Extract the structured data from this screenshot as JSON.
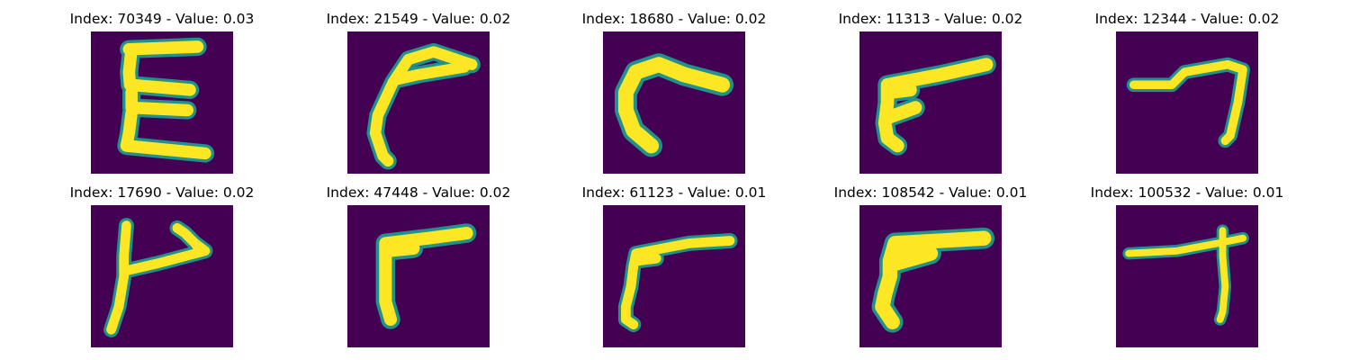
{
  "panels": [
    {
      "title": "Index: 70349 - Value: 0.03",
      "glyph": "epsilon-shape"
    },
    {
      "title": "Index: 21549 - Value: 0.02",
      "glyph": "hook-shape"
    },
    {
      "title": "Index: 18680 - Value: 0.02",
      "glyph": "curve-shape"
    },
    {
      "title": "Index: 11313 - Value: 0.02",
      "glyph": "angle-shape"
    },
    {
      "title": "Index: 12344 - Value: 0.02",
      "glyph": "bent-line-shape"
    },
    {
      "title": "Index: 17690 - Value: 0.02",
      "glyph": "flag-shape"
    },
    {
      "title": "Index: 47448 - Value: 0.02",
      "glyph": "angle-shape"
    },
    {
      "title": "Index: 61123 - Value: 0.01",
      "glyph": "angle-shape"
    },
    {
      "title": "Index: 108542 - Value: 0.01",
      "glyph": "angle-shape"
    },
    {
      "title": "Index: 100532 - Value: 0.01",
      "glyph": "t-shape"
    }
  ],
  "colors": {
    "background": "#440154",
    "stroke": "#fde725",
    "edge": "#21918c"
  }
}
